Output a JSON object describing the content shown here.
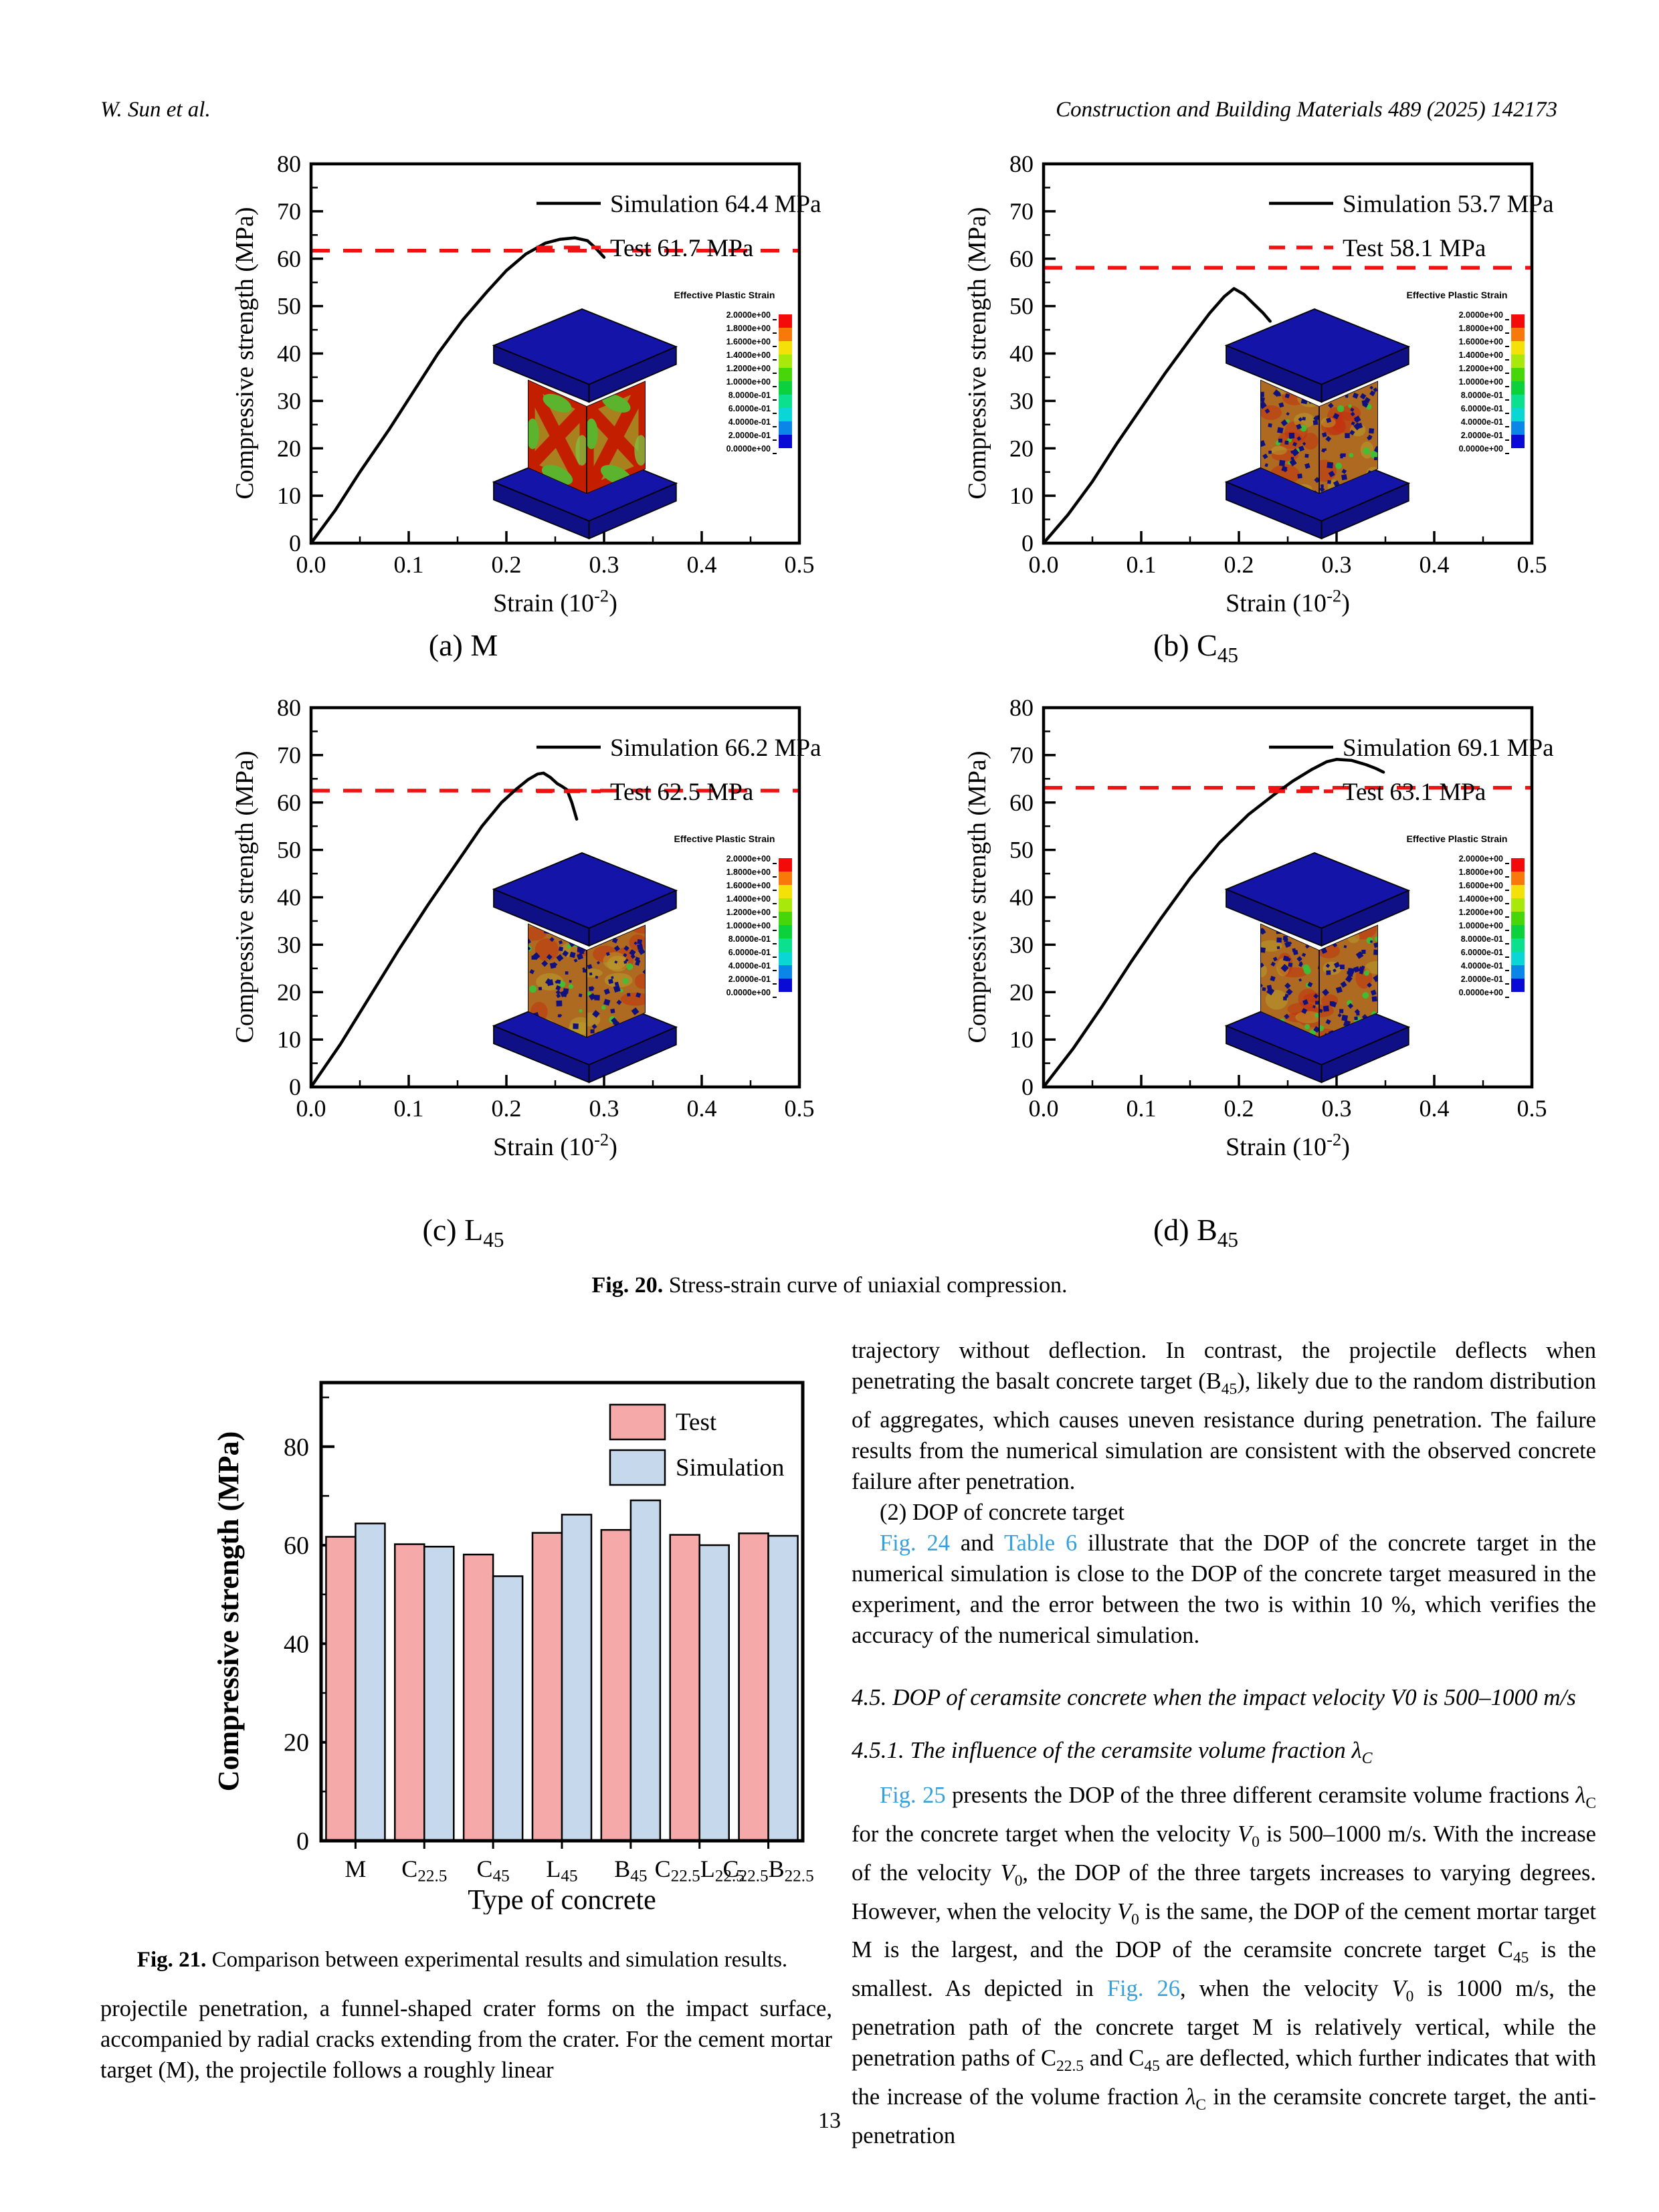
{
  "header": {
    "authors": "W. Sun et al.",
    "journal": "Construction and Building Materials 489 (2025) 142173"
  },
  "colors": {
    "curve": "#000000",
    "test_line": "#f01212",
    "link": "#35a0dc",
    "bar_test": "#f6a9a9",
    "bar_sim": "#c5d8ec",
    "platen": "#1414a8",
    "platen_side": "#0f0f86",
    "specimen_xpattern_base": "#a9801e",
    "specimen_speckle_base": "#ad6a20"
  },
  "colorbar": {
    "title": "Effective Plastic Strain",
    "labels": [
      "2.0000e+00",
      "1.8000e+00",
      "1.6000e+00",
      "1.4000e+00",
      "1.2000e+00",
      "1.0000e+00",
      "8.0000e-01",
      "6.0000e-01",
      "4.0000e-01",
      "2.0000e-01",
      "0.0000e+00"
    ],
    "segment_colors": [
      "#f50a0a",
      "#f8780a",
      "#f5e00a",
      "#a8e80a",
      "#46d60a",
      "#0ad13c",
      "#0ae08e",
      "#0ad6d6",
      "#0a86e8",
      "#0a0ad6"
    ]
  },
  "line_axes": {
    "xlabel": "Strain (10^{-2})",
    "ylabel": "Compressive strength (MPa)",
    "xlim": [
      0,
      0.5
    ],
    "ylim": [
      0,
      80
    ],
    "x_major_step": 0.1,
    "x_minor_step": 0.05,
    "y_major_step": 10,
    "y_minor_step": 5
  },
  "chart_data": [
    {
      "id": "a",
      "type": "line",
      "caption": "(a) M",
      "legend": [
        "Simulation 64.4 MPa",
        "Test 61.7 MPa"
      ],
      "sim_peak": 64.4,
      "test_value": 61.7,
      "inset": "xpattern",
      "seed": 7,
      "sim_curve": [
        [
          0,
          0
        ],
        [
          0.025,
          7
        ],
        [
          0.05,
          15
        ],
        [
          0.08,
          24
        ],
        [
          0.105,
          32
        ],
        [
          0.13,
          40
        ],
        [
          0.155,
          47
        ],
        [
          0.18,
          53
        ],
        [
          0.2,
          57.5
        ],
        [
          0.22,
          61
        ],
        [
          0.24,
          63.3
        ],
        [
          0.255,
          64.1
        ],
        [
          0.27,
          64.4
        ],
        [
          0.283,
          63.8
        ],
        [
          0.291,
          62.3
        ],
        [
          0.3,
          60.3
        ]
      ]
    },
    {
      "id": "b",
      "type": "line",
      "caption": "(b) C_{45}",
      "legend": [
        "Simulation 53.7 MPa",
        "Test 58.1 MPa"
      ],
      "sim_peak": 53.7,
      "test_value": 58.1,
      "inset": "speckle",
      "seed": 11,
      "sim_curve": [
        [
          0,
          0
        ],
        [
          0.025,
          6
        ],
        [
          0.05,
          13
        ],
        [
          0.075,
          21
        ],
        [
          0.1,
          28.5
        ],
        [
          0.125,
          36
        ],
        [
          0.15,
          43
        ],
        [
          0.17,
          48.5
        ],
        [
          0.185,
          52
        ],
        [
          0.195,
          53.7
        ],
        [
          0.205,
          52.5
        ],
        [
          0.215,
          50.5
        ],
        [
          0.225,
          48.5
        ],
        [
          0.232,
          46.8
        ]
      ]
    },
    {
      "id": "c",
      "type": "line",
      "caption": "(c) L_{45}",
      "legend": [
        "Simulation 66.2 MPa",
        "Test 62.5 MPa"
      ],
      "sim_peak": 66.2,
      "test_value": 62.5,
      "inset": "speckle",
      "seed": 23,
      "sim_curve": [
        [
          0,
          0
        ],
        [
          0.03,
          9
        ],
        [
          0.06,
          19
        ],
        [
          0.09,
          29
        ],
        [
          0.12,
          38.5
        ],
        [
          0.15,
          47.5
        ],
        [
          0.175,
          55
        ],
        [
          0.195,
          60
        ],
        [
          0.21,
          62.8
        ],
        [
          0.222,
          64.8
        ],
        [
          0.232,
          66
        ],
        [
          0.238,
          66.2
        ],
        [
          0.245,
          65.3
        ],
        [
          0.252,
          64
        ],
        [
          0.257,
          63.4
        ],
        [
          0.262,
          62.7
        ],
        [
          0.267,
          60
        ],
        [
          0.272,
          56.5
        ]
      ]
    },
    {
      "id": "d",
      "type": "line",
      "caption": "(d) B_{45}",
      "legend": [
        "Simulation 69.1 MPa",
        "Test 63.1 MPa"
      ],
      "sim_peak": 69.1,
      "test_value": 63.1,
      "inset": "speckle",
      "seed": 31,
      "sim_curve": [
        [
          0,
          0
        ],
        [
          0.03,
          8
        ],
        [
          0.06,
          17
        ],
        [
          0.09,
          26.5
        ],
        [
          0.12,
          35.5
        ],
        [
          0.15,
          44
        ],
        [
          0.18,
          51.5
        ],
        [
          0.21,
          57.5
        ],
        [
          0.235,
          61.5
        ],
        [
          0.255,
          64.5
        ],
        [
          0.275,
          67
        ],
        [
          0.29,
          68.6
        ],
        [
          0.3,
          69.1
        ],
        [
          0.315,
          68.9
        ],
        [
          0.33,
          68
        ],
        [
          0.34,
          67.2
        ],
        [
          0.348,
          66.4
        ]
      ]
    },
    {
      "id": "fig21",
      "type": "bar",
      "categories": [
        "M",
        "C_{22.5}",
        "C_{45}",
        "L_{45}",
        "B_{45}",
        "C_{22.5}L_{22.5}",
        "C_{22.5}B_{22.5}"
      ],
      "series": [
        {
          "name": "Test",
          "values": [
            61.7,
            60.2,
            58.1,
            62.5,
            63.1,
            62.1,
            62.4
          ]
        },
        {
          "name": "Simulation",
          "values": [
            64.4,
            59.7,
            53.7,
            66.2,
            69.1,
            60.0,
            61.9
          ]
        }
      ],
      "title": "",
      "xlabel": "Type of concrete",
      "ylabel": "Compressive strength (MPa)",
      "ylim": [
        0,
        93
      ],
      "yticks": [
        0,
        20,
        40,
        60,
        80
      ],
      "legend_position": "top-right",
      "grid": false
    }
  ],
  "captions": {
    "fig20": {
      "label": "Fig. 20.",
      "text": "Stress-strain curve of uniaxial compression."
    },
    "fig21": {
      "label": "Fig. 21.",
      "text": "Comparison between experimental results and simulation results."
    }
  },
  "left_col": {
    "paragraph": "projectile penetration, a funnel-shaped crater forms on the impact surface, accompanied by radial cracks extending from the crater. For the cement mortar target (M), the projectile follows a roughly linear"
  },
  "right_col": {
    "p1": "trajectory without deflection. In contrast, the projectile deflects when penetrating the basalt concrete target (B_{45}), likely due to the random distribution of aggregates, which causes uneven resistance during penetration. The failure results from the numerical simulation are consistent with the observed concrete failure after penetration.",
    "p2": "(2) DOP of concrete target",
    "p3": "[[Fig. 24]] and [[Table 6]] illustrate that the DOP of the concrete target in the numerical simulation is close to the DOP of the concrete target measured in the experiment, and the error between the two is within 10 %, which verifies the accuracy of the numerical simulation.",
    "h45": "4.5.  DOP of ceramsite concrete when the impact velocity V0 is 500–1000 m/s",
    "h451": "4.5.1.  The influence of the ceramsite volume fraction /{λ}_{C}",
    "p4": "[[Fig. 25]] presents the DOP of the three different ceramsite volume fractions /{λ}_{C} for the concrete target when the velocity /{V}_{0} is 500–1000 m/s. With the increase of the velocity /{V}_{0}, the DOP of the three targets increases to varying degrees. However, when the velocity /{V}_{0} is the same, the DOP of the cement mortar target M is the largest, and the DOP of the ceramsite concrete target C_{45} is the smallest. As depicted in [[Fig. 26]], when the velocity /{V}_{0} is 1000 m/s, the penetration path of the concrete target M is relatively vertical, while the penetration paths of C_{22.5} and C_{45} are deflected, which further indicates that with the increase of the volume fraction /{λ}_{C} in the ceramsite concrete target, the anti-penetration"
  },
  "page_number": "13"
}
